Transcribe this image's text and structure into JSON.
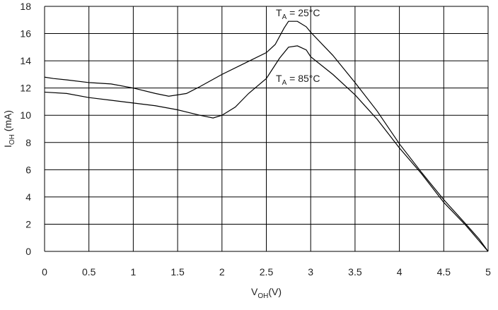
{
  "chart_data": {
    "type": "line",
    "x_label": {
      "main": "V",
      "sub": "OH",
      "rest": "(V)"
    },
    "y_label": {
      "main": "I",
      "sub": "OH",
      "rest": " (mA)"
    },
    "xlim": [
      0,
      5
    ],
    "ylim": [
      0,
      18
    ],
    "xticks": [
      0,
      0.5,
      1,
      1.5,
      2,
      2.5,
      3,
      3.5,
      4,
      4.5,
      5
    ],
    "yticks": [
      0,
      2,
      4,
      6,
      8,
      10,
      12,
      14,
      16,
      18
    ],
    "grid": true,
    "series": [
      {
        "label": {
          "main": "T",
          "sub": "A",
          "rest": " = 25°C"
        },
        "color": "#000000",
        "x": [
          0,
          0.1,
          0.25,
          0.5,
          0.75,
          1,
          1.25,
          1.4,
          1.6,
          1.75,
          2,
          2.25,
          2.5,
          2.6,
          2.7,
          2.75,
          2.85,
          2.95,
          3,
          3.25,
          3.5,
          3.75,
          4,
          4.25,
          4.5,
          4.75,
          4.9,
          5
        ],
        "values": [
          12.8,
          12.7,
          12.6,
          12.4,
          12.3,
          12.0,
          11.6,
          11.4,
          11.6,
          12.1,
          13.0,
          13.8,
          14.6,
          15.2,
          16.4,
          16.9,
          16.9,
          16.5,
          16.1,
          14.4,
          12.4,
          10.3,
          7.9,
          5.8,
          3.8,
          2.0,
          0.9,
          0
        ]
      },
      {
        "label": {
          "main": "T",
          "sub": "A",
          "rest": " = 85°C"
        },
        "color": "#000000",
        "x": [
          0,
          0.25,
          0.5,
          0.75,
          1,
          1.25,
          1.5,
          1.75,
          1.9,
          2,
          2.15,
          2.3,
          2.5,
          2.65,
          2.75,
          2.85,
          2.95,
          3,
          3.25,
          3.5,
          3.75,
          4,
          4.25,
          4.5,
          4.75,
          5
        ],
        "values": [
          11.7,
          11.6,
          11.3,
          11.1,
          10.9,
          10.7,
          10.4,
          10.0,
          9.8,
          10.0,
          10.6,
          11.6,
          12.7,
          14.2,
          15.0,
          15.1,
          14.8,
          14.3,
          13.0,
          11.5,
          9.7,
          7.6,
          5.7,
          3.6,
          1.9,
          0
        ]
      }
    ]
  }
}
